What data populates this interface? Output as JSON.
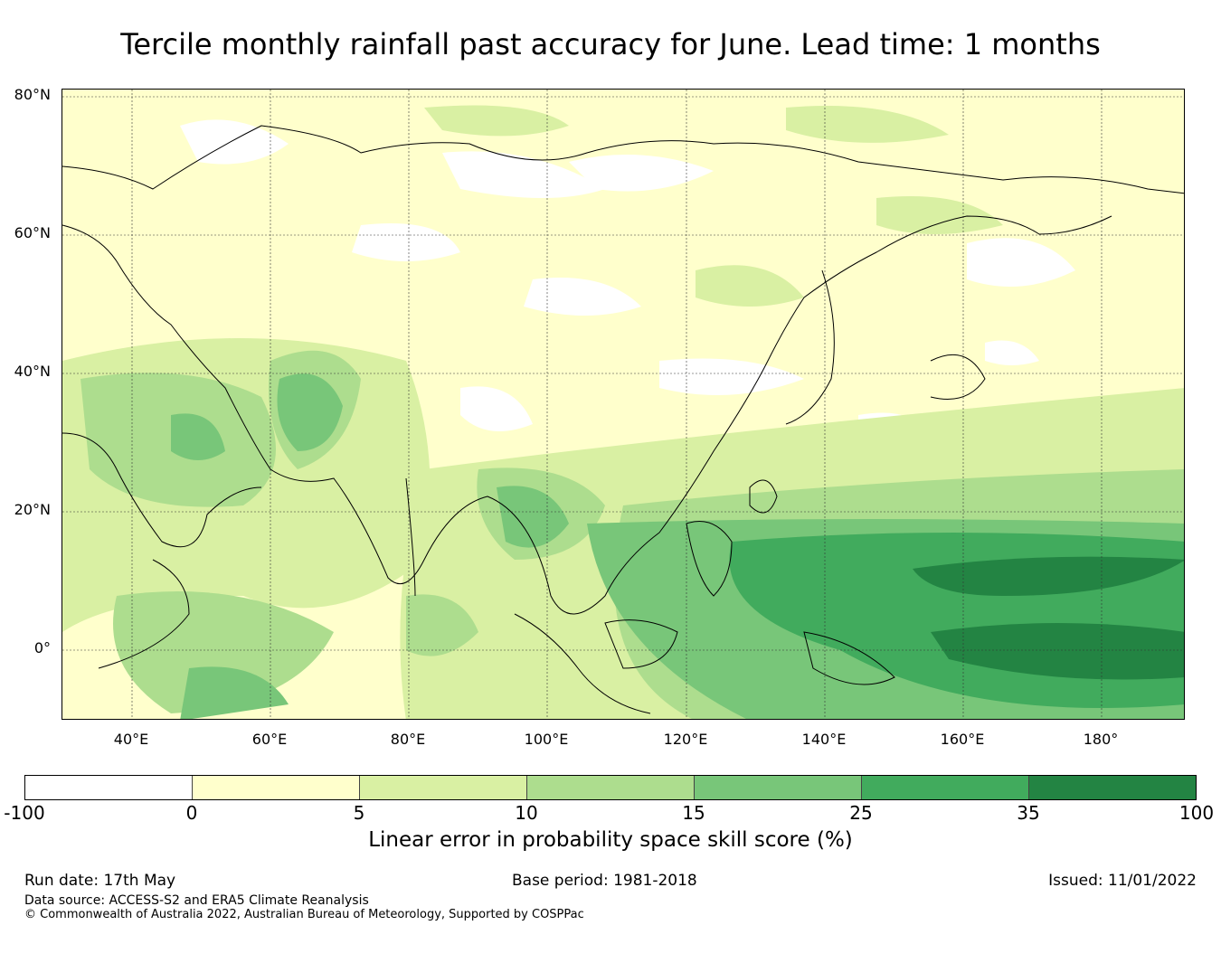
{
  "title": "Tercile monthly rainfall past accuracy for June. Lead time: 1 months",
  "map": {
    "lat_labels": [
      "80°N",
      "60°N",
      "40°N",
      "20°N",
      "0°"
    ],
    "lon_labels": [
      "40°E",
      "60°E",
      "80°E",
      "100°E",
      "120°E",
      "140°E",
      "160°E",
      "180°"
    ],
    "extent": {
      "lon_min": 30,
      "lon_max": 192,
      "lat_min": -10,
      "lat_max": 81
    },
    "gridlines": true
  },
  "colorbar": {
    "ticks": [
      "-100",
      "0",
      "5",
      "10",
      "15",
      "25",
      "35",
      "100"
    ],
    "colors": [
      "#ffffff",
      "#ffffcc",
      "#d9f0a3",
      "#addd8e",
      "#78c679",
      "#41ab5d",
      "#238443"
    ],
    "label": "Linear error in probability space skill score (%)"
  },
  "footer": {
    "run_date": "Run date: 17th May",
    "base_period": "Base period: 1981-2018",
    "issued": "Issued: 11/01/2022",
    "data_source": "Data source: ACCESS-S2 and ERA5 Climate Reanalysis",
    "copyright": "© Commonwealth of Australia 2022, Australian Bureau of Meteorology, Supported by COSPPac"
  }
}
